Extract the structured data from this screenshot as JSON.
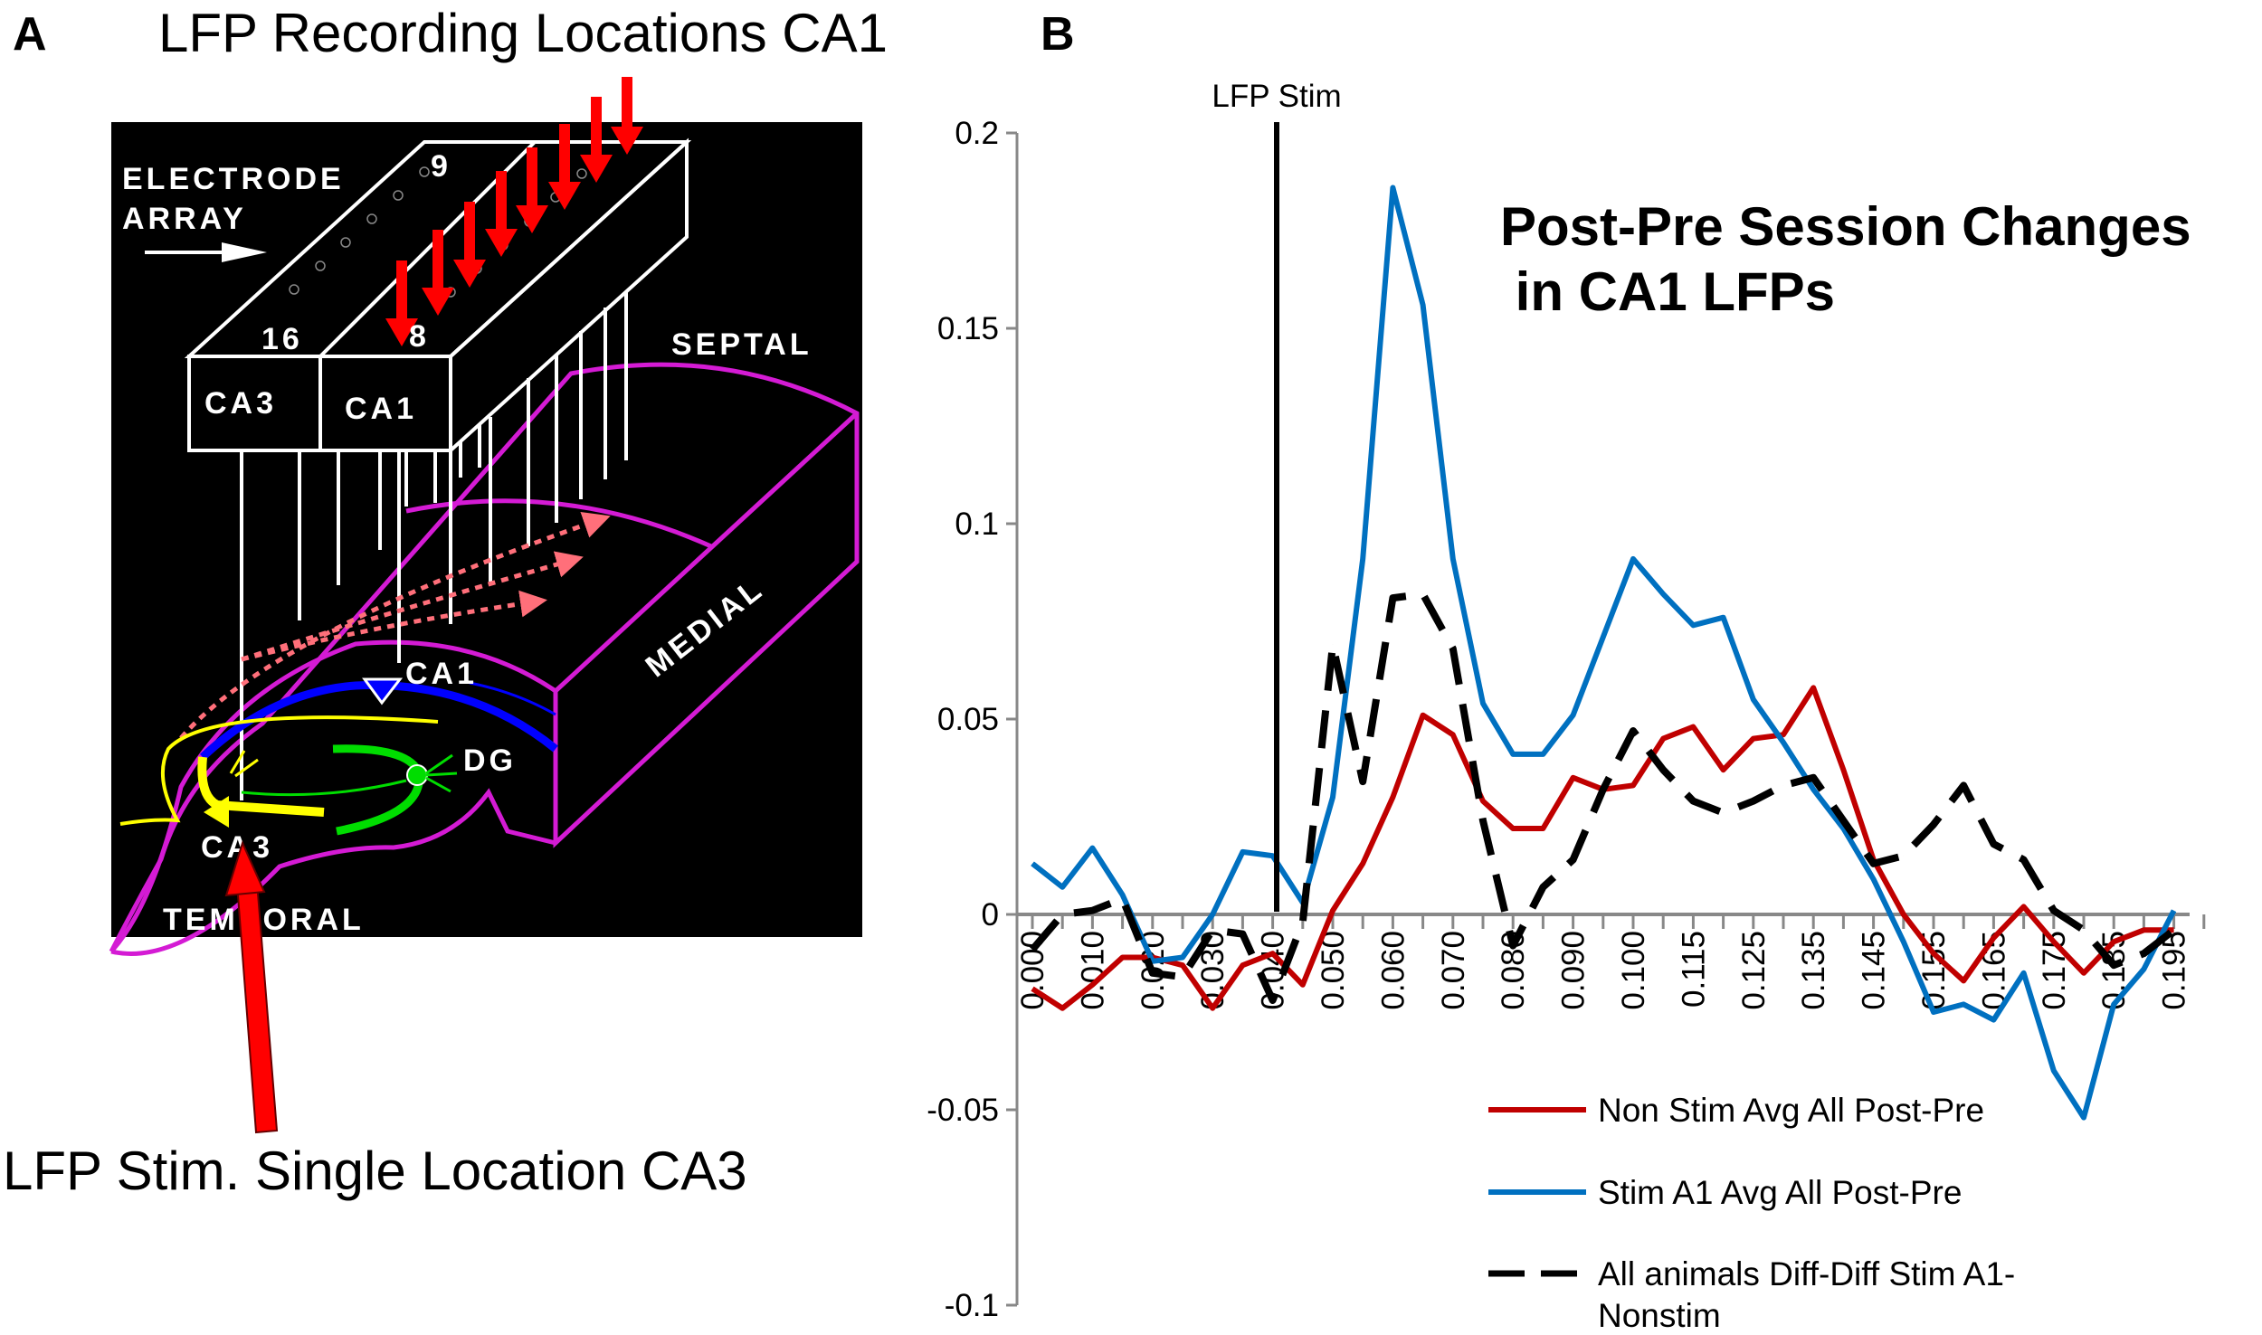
{
  "panel_a": {
    "label": "A",
    "title": "LFP Recording Locations  CA1",
    "caption": "LFP Stim. Single Location CA3",
    "diagram_labels": {
      "electrode": "ELECTRODE",
      "array": "ARRAY",
      "num9": "9",
      "num16": "16",
      "num8": "8",
      "box_ca3": "CA3",
      "box_ca1": "CA1",
      "septal": "SEPTAL",
      "medial": "MEDIAL",
      "ca1": "CA1",
      "dg": "DG",
      "ca3": "CA3",
      "temporal": "TEMPORAL"
    }
  },
  "panel_b": {
    "label": "B",
    "stim_marker_label": "LFP Stim"
  },
  "chart_data": {
    "type": "line",
    "title": "Post-Pre Session Changes",
    "title_line2": " in CA1 LFPs",
    "xlabel": "",
    "ylabel": "",
    "ylim": [
      -0.1,
      0.2
    ],
    "yticks": [
      0.2,
      0.15,
      0.1,
      0.05,
      0,
      -0.05,
      -0.1
    ],
    "ytick_labels": [
      "0.2",
      "0.15",
      "0.1",
      "0.05",
      "0",
      "-0.05",
      "-0.1"
    ],
    "x": [
      "0.000",
      "0.005",
      "0.010",
      "0.015",
      "0.020",
      "0.025",
      "0.030",
      "0.035",
      "0.040",
      "0.045",
      "0.050",
      "0.055",
      "0.060",
      "0.065",
      "0.070",
      "0.075",
      "0.080",
      "0.085",
      "0.090",
      "0.095",
      "0.100",
      "0.110",
      "0.115",
      "0.120",
      "0.125",
      "0.130",
      "0.135",
      "0.140",
      "0.145",
      "0.150",
      "0.155",
      "0.160",
      "0.165",
      "0.170",
      "0.175",
      "0.180",
      "0.185",
      "0.190",
      "0.195"
    ],
    "xtick_labels": [
      "0.000",
      "0.010",
      "0.020",
      "0.030",
      "0.040",
      "0.050",
      "0.060",
      "0.070",
      "0.080",
      "0.090",
      "0.100",
      "0.115",
      "0.125",
      "0.135",
      "0.145",
      "0.155",
      "0.165",
      "0.175",
      "0.185",
      "0.195"
    ],
    "stim_marker_x": 0.04,
    "legend_position": "bottom-right",
    "series": [
      {
        "name": "Non Stim Avg All Post-Pre",
        "color": "#c00000",
        "style": "solid",
        "values": [
          -0.019,
          -0.024,
          -0.018,
          -0.011,
          -0.011,
          -0.013,
          -0.024,
          -0.013,
          -0.01,
          -0.018,
          0.001,
          0.013,
          0.03,
          0.051,
          0.046,
          0.029,
          0.022,
          0.022,
          0.035,
          0.032,
          0.033,
          0.045,
          0.048,
          0.037,
          0.045,
          0.046,
          0.058,
          0.037,
          0.014,
          0.0,
          -0.01,
          -0.017,
          -0.006,
          0.002,
          -0.007,
          -0.015,
          -0.007,
          -0.004,
          -0.004
        ]
      },
      {
        "name": "Stim A1 Avg All Post-Pre",
        "color": "#0070c0",
        "style": "solid",
        "values": [
          0.013,
          0.007,
          0.017,
          0.005,
          -0.012,
          -0.011,
          0.0,
          0.016,
          0.015,
          0.003,
          0.03,
          0.091,
          0.186,
          0.156,
          0.091,
          0.054,
          0.041,
          0.041,
          0.051,
          0.071,
          0.091,
          0.082,
          0.074,
          0.076,
          0.055,
          0.044,
          0.032,
          0.022,
          0.009,
          -0.007,
          -0.025,
          -0.023,
          -0.027,
          -0.015,
          -0.04,
          -0.052,
          -0.023,
          -0.014,
          0.001
        ]
      },
      {
        "name": "All animals Diff-Diff Stim A1-",
        "name_line2": "Nonstim",
        "color": "#000000",
        "style": "dashed",
        "values": [
          -0.009,
          0.0,
          0.001,
          0.004,
          -0.015,
          -0.016,
          -0.004,
          -0.005,
          -0.022,
          -0.002,
          0.069,
          0.034,
          0.081,
          0.082,
          0.068,
          0.024,
          -0.008,
          0.007,
          0.014,
          0.032,
          0.047,
          0.037,
          0.029,
          0.026,
          0.029,
          0.033,
          0.035,
          0.024,
          0.013,
          0.015,
          0.023,
          0.033,
          0.018,
          0.014,
          0.001,
          -0.004,
          -0.013,
          -0.01,
          -0.004
        ]
      }
    ]
  }
}
